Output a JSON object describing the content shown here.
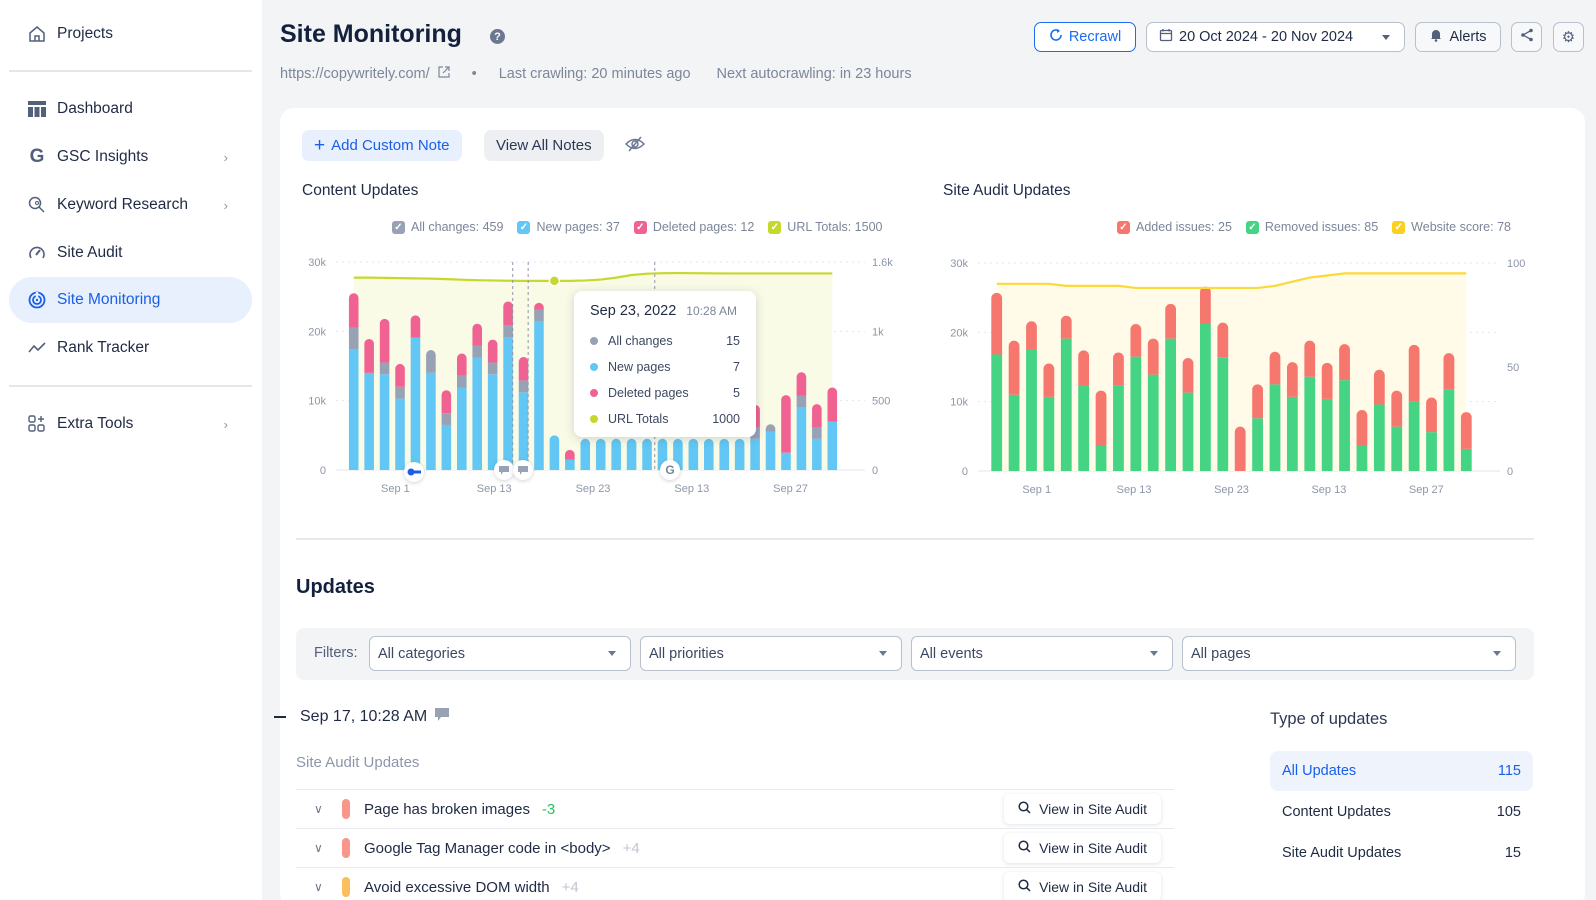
{
  "sidebar": {
    "items": [
      {
        "label": "Projects",
        "icon": "home-icon"
      },
      {
        "label": "Dashboard",
        "icon": "dashboard-icon"
      },
      {
        "label": "GSC Insights",
        "icon": "google-icon",
        "has_submenu": true
      },
      {
        "label": "Keyword Research",
        "icon": "keyword-search-icon",
        "has_submenu": true
      },
      {
        "label": "Site Audit",
        "icon": "gauge-icon"
      },
      {
        "label": "Site Monitoring",
        "icon": "radar-icon",
        "active": true
      },
      {
        "label": "Rank Tracker",
        "icon": "trend-icon"
      },
      {
        "label": "Extra Tools",
        "icon": "grid-plus-icon",
        "has_submenu": true
      }
    ],
    "chevron": "›"
  },
  "header": {
    "title": "Site Monitoring",
    "help": "?",
    "url": "https://copywritely.com/",
    "last_crawling": "Last crawling: 20 minutes ago",
    "next_autocrawling": "Next autocrawling: in 23 hours",
    "recrawl_label": "Recrawl",
    "date_range": "20 Oct 2024 - 20 Nov 2024",
    "alerts_label": "Alerts"
  },
  "notes": {
    "add_label": "Add Custom Note",
    "view_label": "View All Notes"
  },
  "colors": {
    "blue": "#62c7f5",
    "gray": "#97a2b4",
    "pink": "#f06292",
    "lime": "#c6d82c",
    "red": "#f6776d",
    "green": "#45d483",
    "yellow": "#fde047",
    "accent": "#1a6cf0"
  },
  "chart_data": [
    {
      "type": "bar",
      "title": "Content Updates",
      "stacked": true,
      "legend": [
        {
          "label": "All changes: 459",
          "color": "#97a2b4"
        },
        {
          "label": "New pages: 37",
          "color": "#62c7f5"
        },
        {
          "label": "Deleted pages: 12",
          "color": "#f06292"
        },
        {
          "label": "URL Totals: 1500",
          "color": "#c6d82c"
        }
      ],
      "x_tick_labels": [
        "Sep 1",
        "Sep 13",
        "Sep 23",
        "Sep 13",
        "Sep 27"
      ],
      "y_left_ticks": [
        "0",
        "10k",
        "20k",
        "30k"
      ],
      "y_right_ticks": [
        "0",
        "500",
        "1k",
        "1.6k"
      ],
      "ylim": [
        0,
        30000
      ],
      "y2lim": [
        0,
        1600
      ],
      "series": [
        {
          "name": "New pages",
          "values": [
            17400,
            14000,
            13800,
            10300,
            19100,
            14000,
            6500,
            11900,
            16200,
            13800,
            19100,
            11200,
            21400,
            5000,
            1500,
            4500,
            4500,
            4500,
            4500,
            4500,
            4500,
            4500,
            4500,
            4500,
            4500,
            4500,
            4500,
            5500,
            2500,
            9000,
            4500,
            7000
          ]
        },
        {
          "name": "All changes",
          "values": [
            3100,
            0,
            1700,
            1700,
            0,
            3300,
            1700,
            1700,
            1700,
            1700,
            1700,
            1700,
            1700,
            0,
            0,
            0,
            0,
            0,
            0,
            0,
            0,
            0,
            0,
            0,
            0,
            0,
            1600,
            1100,
            0,
            1700,
            1700,
            0
          ]
        },
        {
          "name": "Deleted pages",
          "values": [
            5000,
            4900,
            6300,
            3300,
            3200,
            0,
            3300,
            3200,
            3200,
            3300,
            3500,
            3400,
            1000,
            0,
            1400,
            0,
            0,
            0,
            0,
            0,
            0,
            0,
            0,
            0,
            0,
            0,
            3300,
            0,
            8300,
            3400,
            3300,
            4900
          ]
        },
        {
          "name": "URL Totals",
          "values": [
            1480,
            1480,
            1478,
            1476,
            1474,
            1472,
            1468,
            1464,
            1460,
            1458,
            1456,
            1455,
            1455,
            1455,
            1455,
            1458,
            1465,
            1480,
            1500,
            1510,
            1514,
            1515,
            1514,
            1513,
            1512,
            1512,
            1512,
            1512,
            1512,
            1512,
            1512,
            1512
          ]
        }
      ],
      "tooltip": {
        "date": "Sep 23, 2022",
        "time": "10:28 AM",
        "rows": [
          {
            "label": "All changes",
            "value": "15",
            "color": "#97a2b4"
          },
          {
            "label": "New pages",
            "value": "7",
            "color": "#62c7f5"
          },
          {
            "label": "Deleted pages",
            "value": "5",
            "color": "#f06292"
          },
          {
            "label": "URL Totals",
            "value": "1000",
            "color": "#c6d82c"
          }
        ]
      }
    },
    {
      "type": "bar",
      "title": "Site Audit Updates",
      "stacked": true,
      "legend": [
        {
          "label": "Added issues: 25",
          "color": "#f6776d"
        },
        {
          "label": "Removed issues: 85",
          "color": "#45d483"
        },
        {
          "label": "Website score: 78",
          "color": "#fde047"
        }
      ],
      "x_tick_labels": [
        "Sep 1",
        "Sep 13",
        "Sep 23",
        "Sep 13",
        "Sep 27"
      ],
      "y_left_ticks": [
        "0",
        "10k",
        "20k",
        "30k"
      ],
      "y_right_ticks": [
        "0",
        "50",
        "100"
      ],
      "ylim": [
        0,
        30000
      ],
      "y2lim": [
        0,
        100
      ],
      "series": [
        {
          "name": "Removed issues",
          "values": [
            16800,
            11000,
            17600,
            10700,
            19100,
            12400,
            3600,
            12300,
            16500,
            13900,
            19100,
            11300,
            21200,
            16400,
            0,
            7600,
            12500,
            10700,
            13600,
            10400,
            13100,
            3600,
            9600,
            6400,
            10000,
            5600,
            11800,
            3200
          ]
        },
        {
          "name": "Added issues",
          "values": [
            8900,
            7800,
            4000,
            4800,
            3300,
            5000,
            8000,
            4800,
            4700,
            5200,
            5000,
            5000,
            5400,
            5000,
            6400,
            4900,
            4700,
            5000,
            5200,
            5200,
            5200,
            5200,
            5000,
            5200,
            8200,
            5000,
            5200,
            5300
          ]
        },
        {
          "name": "Website score",
          "values": [
            90,
            90,
            90,
            90,
            89,
            89,
            89,
            89,
            88,
            88,
            88,
            88,
            88,
            88,
            88,
            88,
            89,
            91,
            93,
            94,
            95,
            95,
            95,
            95,
            95,
            95,
            95,
            95
          ]
        }
      ]
    }
  ],
  "updates": {
    "title": "Updates",
    "filters_label": "Filters:",
    "filters": [
      "All categories",
      "All priorities",
      "All events",
      "All pages"
    ],
    "group": {
      "datetime": "Sep 17, 10:28 AM",
      "section": "Site Audit Updates",
      "rows": [
        {
          "title": "Page has broken images",
          "delta": "-3",
          "delta_color": "#22c55e",
          "priority_color": "#f8968c",
          "action": "View in Site Audit"
        },
        {
          "title": "Google Tag Manager code in <body>",
          "delta": "+4",
          "delta_color": "#c0c6d1",
          "priority_color": "#f8968c",
          "action": "View in Site Audit"
        },
        {
          "title": "Avoid excessive DOM width",
          "delta": "+4",
          "delta_color": "#c0c6d1",
          "priority_color": "#fbbf5d",
          "action": "View in Site Audit"
        }
      ]
    },
    "types": {
      "title": "Type of updates",
      "items": [
        {
          "label": "All Updates",
          "count": "115",
          "active": true
        },
        {
          "label": "Content Updates",
          "count": "105"
        },
        {
          "label": "Site Audit Updates",
          "count": "15"
        }
      ]
    }
  }
}
